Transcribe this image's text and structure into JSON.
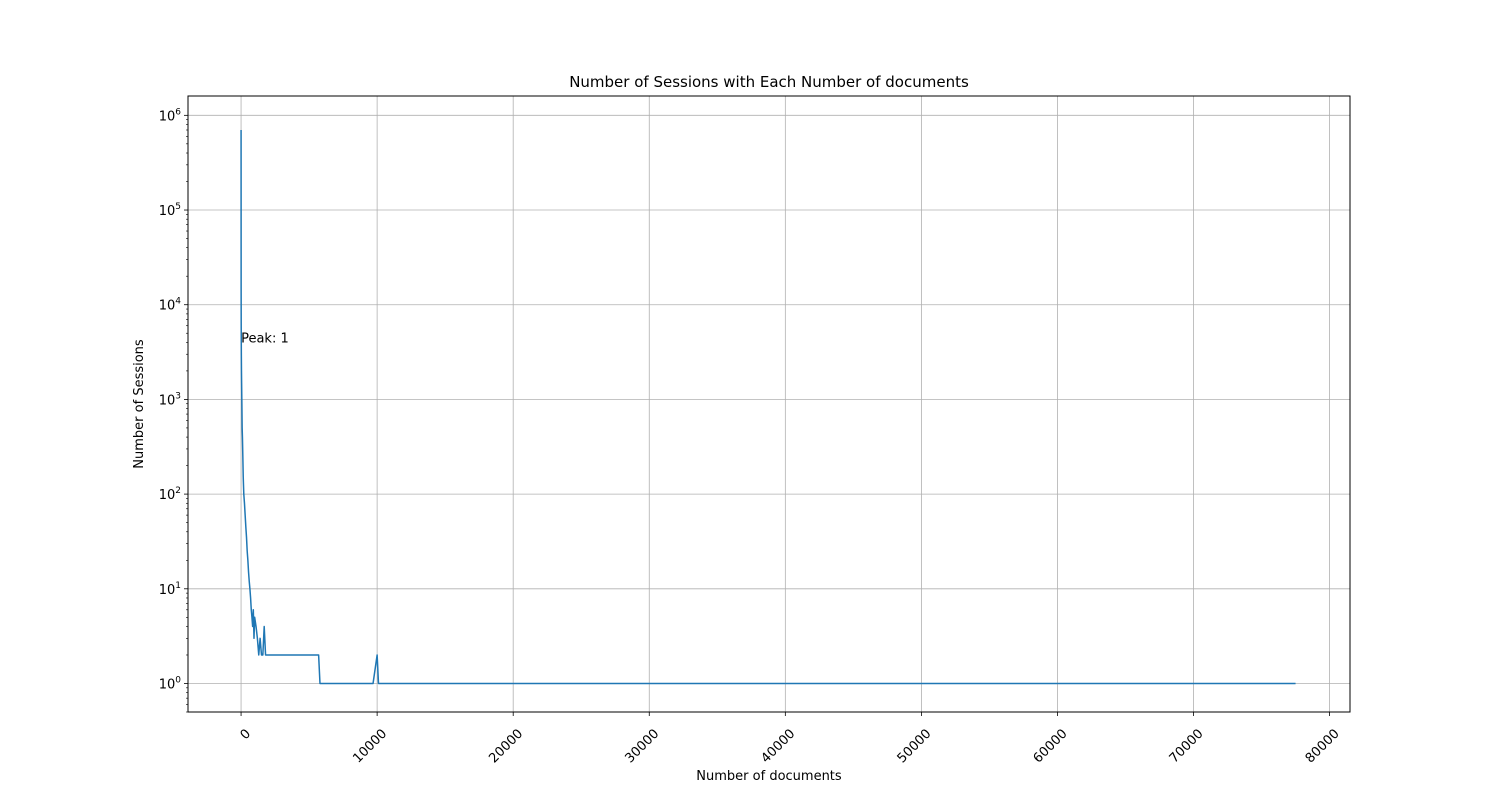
{
  "chart_data": {
    "type": "line",
    "title": "Number of Sessions with Each Number of documents",
    "xlabel": "Number of documents",
    "ylabel": "Number of Sessions",
    "yscale": "log",
    "xlim": [
      -3900,
      81500
    ],
    "ylim": [
      0.5,
      1600000
    ],
    "xticks": [
      0,
      10000,
      20000,
      30000,
      40000,
      50000,
      60000,
      70000,
      80000
    ],
    "xtick_labels": [
      "0",
      "10000",
      "20000",
      "30000",
      "40000",
      "50000",
      "60000",
      "70000",
      "80000"
    ],
    "xtick_rotation": 45,
    "yticks": [
      1,
      10,
      100,
      1000,
      10000,
      100000,
      1000000
    ],
    "ytick_labels": [
      {
        "base": "10",
        "exp": "0"
      },
      {
        "base": "10",
        "exp": "1"
      },
      {
        "base": "10",
        "exp": "2"
      },
      {
        "base": "10",
        "exp": "3"
      },
      {
        "base": "10",
        "exp": "4"
      },
      {
        "base": "10",
        "exp": "5"
      },
      {
        "base": "10",
        "exp": "6"
      }
    ],
    "grid": true,
    "color": "#1f77b4",
    "annotation": {
      "text": "Peak: 1",
      "x": 1,
      "y": 4000
    },
    "series": [
      {
        "x": [
          1,
          5,
          10,
          20,
          30,
          40,
          60,
          80,
          100,
          130,
          160,
          200,
          250,
          300,
          350,
          400,
          450,
          500,
          550,
          600,
          650,
          700,
          750,
          800,
          850,
          900,
          950,
          1000,
          1100,
          1200,
          1300,
          1400,
          1500,
          1600,
          1700,
          1800,
          1900,
          2000,
          2200,
          2500,
          2700,
          2900,
          3100,
          3300,
          3500,
          5700,
          5800,
          9700,
          10000,
          10100,
          77500
        ],
        "y": [
          700000,
          15000,
          6000,
          3000,
          2000,
          1500,
          900,
          500,
          400,
          250,
          150,
          100,
          80,
          60,
          45,
          35,
          25,
          20,
          15,
          12,
          10,
          8,
          6,
          5,
          4,
          6,
          3,
          5,
          4,
          3,
          2,
          3,
          2,
          2,
          4,
          2,
          2,
          2,
          2,
          2,
          2,
          2,
          2,
          2,
          2,
          2,
          1,
          1,
          2,
          1,
          1
        ]
      }
    ]
  }
}
